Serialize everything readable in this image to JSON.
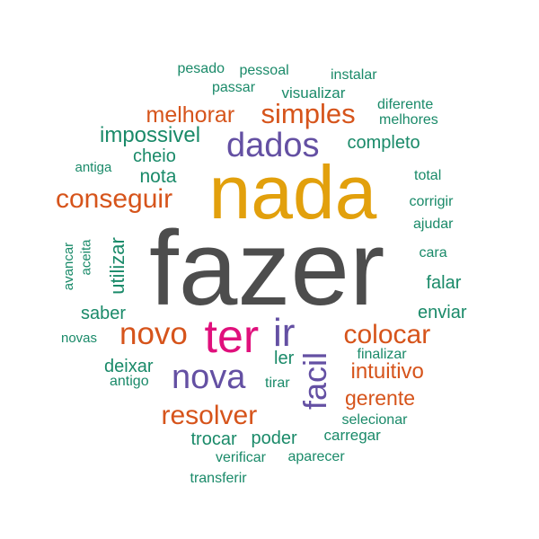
{
  "palette": {
    "dark_gray": "#4d4d4d",
    "gold": "#e2a00c",
    "magenta": "#e0107c",
    "purple": "#6450a3",
    "orange": "#d6541b",
    "teal": "#1a8a69"
  },
  "words": [
    {
      "text": "fazer",
      "color": "dark_gray"
    },
    {
      "text": "nada",
      "color": "gold"
    },
    {
      "text": "ter",
      "color": "magenta"
    },
    {
      "text": "dados",
      "color": "purple"
    },
    {
      "text": "nova",
      "color": "purple"
    },
    {
      "text": "ir",
      "color": "purple"
    },
    {
      "text": "facil",
      "color": "purple"
    },
    {
      "text": "novo",
      "color": "orange"
    },
    {
      "text": "conseguir",
      "color": "orange"
    },
    {
      "text": "simples",
      "color": "orange"
    },
    {
      "text": "melhorar",
      "color": "orange"
    },
    {
      "text": "colocar",
      "color": "orange"
    },
    {
      "text": "resolver",
      "color": "orange"
    },
    {
      "text": "intuitivo",
      "color": "orange"
    },
    {
      "text": "gerente",
      "color": "orange"
    },
    {
      "text": "impossivel",
      "color": "teal"
    },
    {
      "text": "completo",
      "color": "teal"
    },
    {
      "text": "cheio",
      "color": "teal"
    },
    {
      "text": "nota",
      "color": "teal"
    },
    {
      "text": "utilizar",
      "color": "teal"
    },
    {
      "text": "saber",
      "color": "teal"
    },
    {
      "text": "enviar",
      "color": "teal"
    },
    {
      "text": "falar",
      "color": "teal"
    },
    {
      "text": "deixar",
      "color": "teal"
    },
    {
      "text": "poder",
      "color": "teal"
    },
    {
      "text": "trocar",
      "color": "teal"
    },
    {
      "text": "pesado",
      "color": "teal"
    },
    {
      "text": "pessoal",
      "color": "teal"
    },
    {
      "text": "instalar",
      "color": "teal"
    },
    {
      "text": "passar",
      "color": "teal"
    },
    {
      "text": "visualizar",
      "color": "teal"
    },
    {
      "text": "diferente",
      "color": "teal"
    },
    {
      "text": "melhores",
      "color": "teal"
    },
    {
      "text": "antiga",
      "color": "teal"
    },
    {
      "text": "total",
      "color": "teal"
    },
    {
      "text": "corrigir",
      "color": "teal"
    },
    {
      "text": "ajudar",
      "color": "teal"
    },
    {
      "text": "cara",
      "color": "teal"
    },
    {
      "text": "avancar",
      "color": "teal"
    },
    {
      "text": "aceita",
      "color": "teal"
    },
    {
      "text": "novas",
      "color": "teal"
    },
    {
      "text": "ler",
      "color": "teal"
    },
    {
      "text": "finalizar",
      "color": "teal"
    },
    {
      "text": "antigo",
      "color": "teal"
    },
    {
      "text": "tirar",
      "color": "teal"
    },
    {
      "text": "selecionar",
      "color": "teal"
    },
    {
      "text": "carregar",
      "color": "teal"
    },
    {
      "text": "verificar",
      "color": "teal"
    },
    {
      "text": "aparecer",
      "color": "teal"
    },
    {
      "text": "transferir",
      "color": "teal"
    }
  ]
}
